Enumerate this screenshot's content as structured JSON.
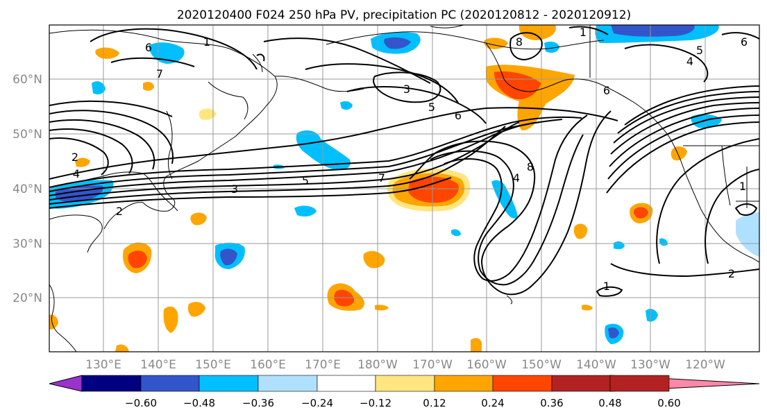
{
  "title": "2020120400 F024 250 hPa PV, precipitation PC (2020120812 - 2020120912)",
  "lat_labels": [
    "60°N",
    "50°N",
    "40°N",
    "30°N",
    "20°N"
  ],
  "lon_labels": [
    "130°E",
    "140°E",
    "150°E",
    "160°E",
    "170°E",
    "180°W",
    "170°W",
    "160°W",
    "150°W",
    "140°W",
    "130°W",
    "120°W"
  ],
  "colorbar": {
    "tick_labels": [
      "−0.60",
      "−0.48",
      "−0.36",
      "−0.24",
      "−0.12",
      "0.12",
      "0.24",
      "0.36",
      "0.48",
      "0.60"
    ],
    "colors": [
      "#9933cc",
      "#000080",
      "#3355cc",
      "#00bfff",
      "#b0e0ff",
      "#ffffff",
      "#ffe680",
      "#ffa500",
      "#ff4500",
      "#b22222",
      "#ff88aa"
    ],
    "extend": "both"
  },
  "contour_labels": {
    "c1": "1",
    "c6a": "6",
    "c7a": "7",
    "c3a": "3",
    "c5a": "5",
    "c6b": "6",
    "c8a": "8",
    "c1b": "1",
    "c6c": "6",
    "c5b": "5",
    "c4a": "4",
    "c6d": "6",
    "c2a": "2",
    "c4b": "4",
    "c3b": "3",
    "c5c": "5",
    "c7b": "7",
    "c2b": "2",
    "c8b": "8",
    "c4c": "4",
    "c1c": "1",
    "c2c": "2",
    "c1d": "1"
  }
}
